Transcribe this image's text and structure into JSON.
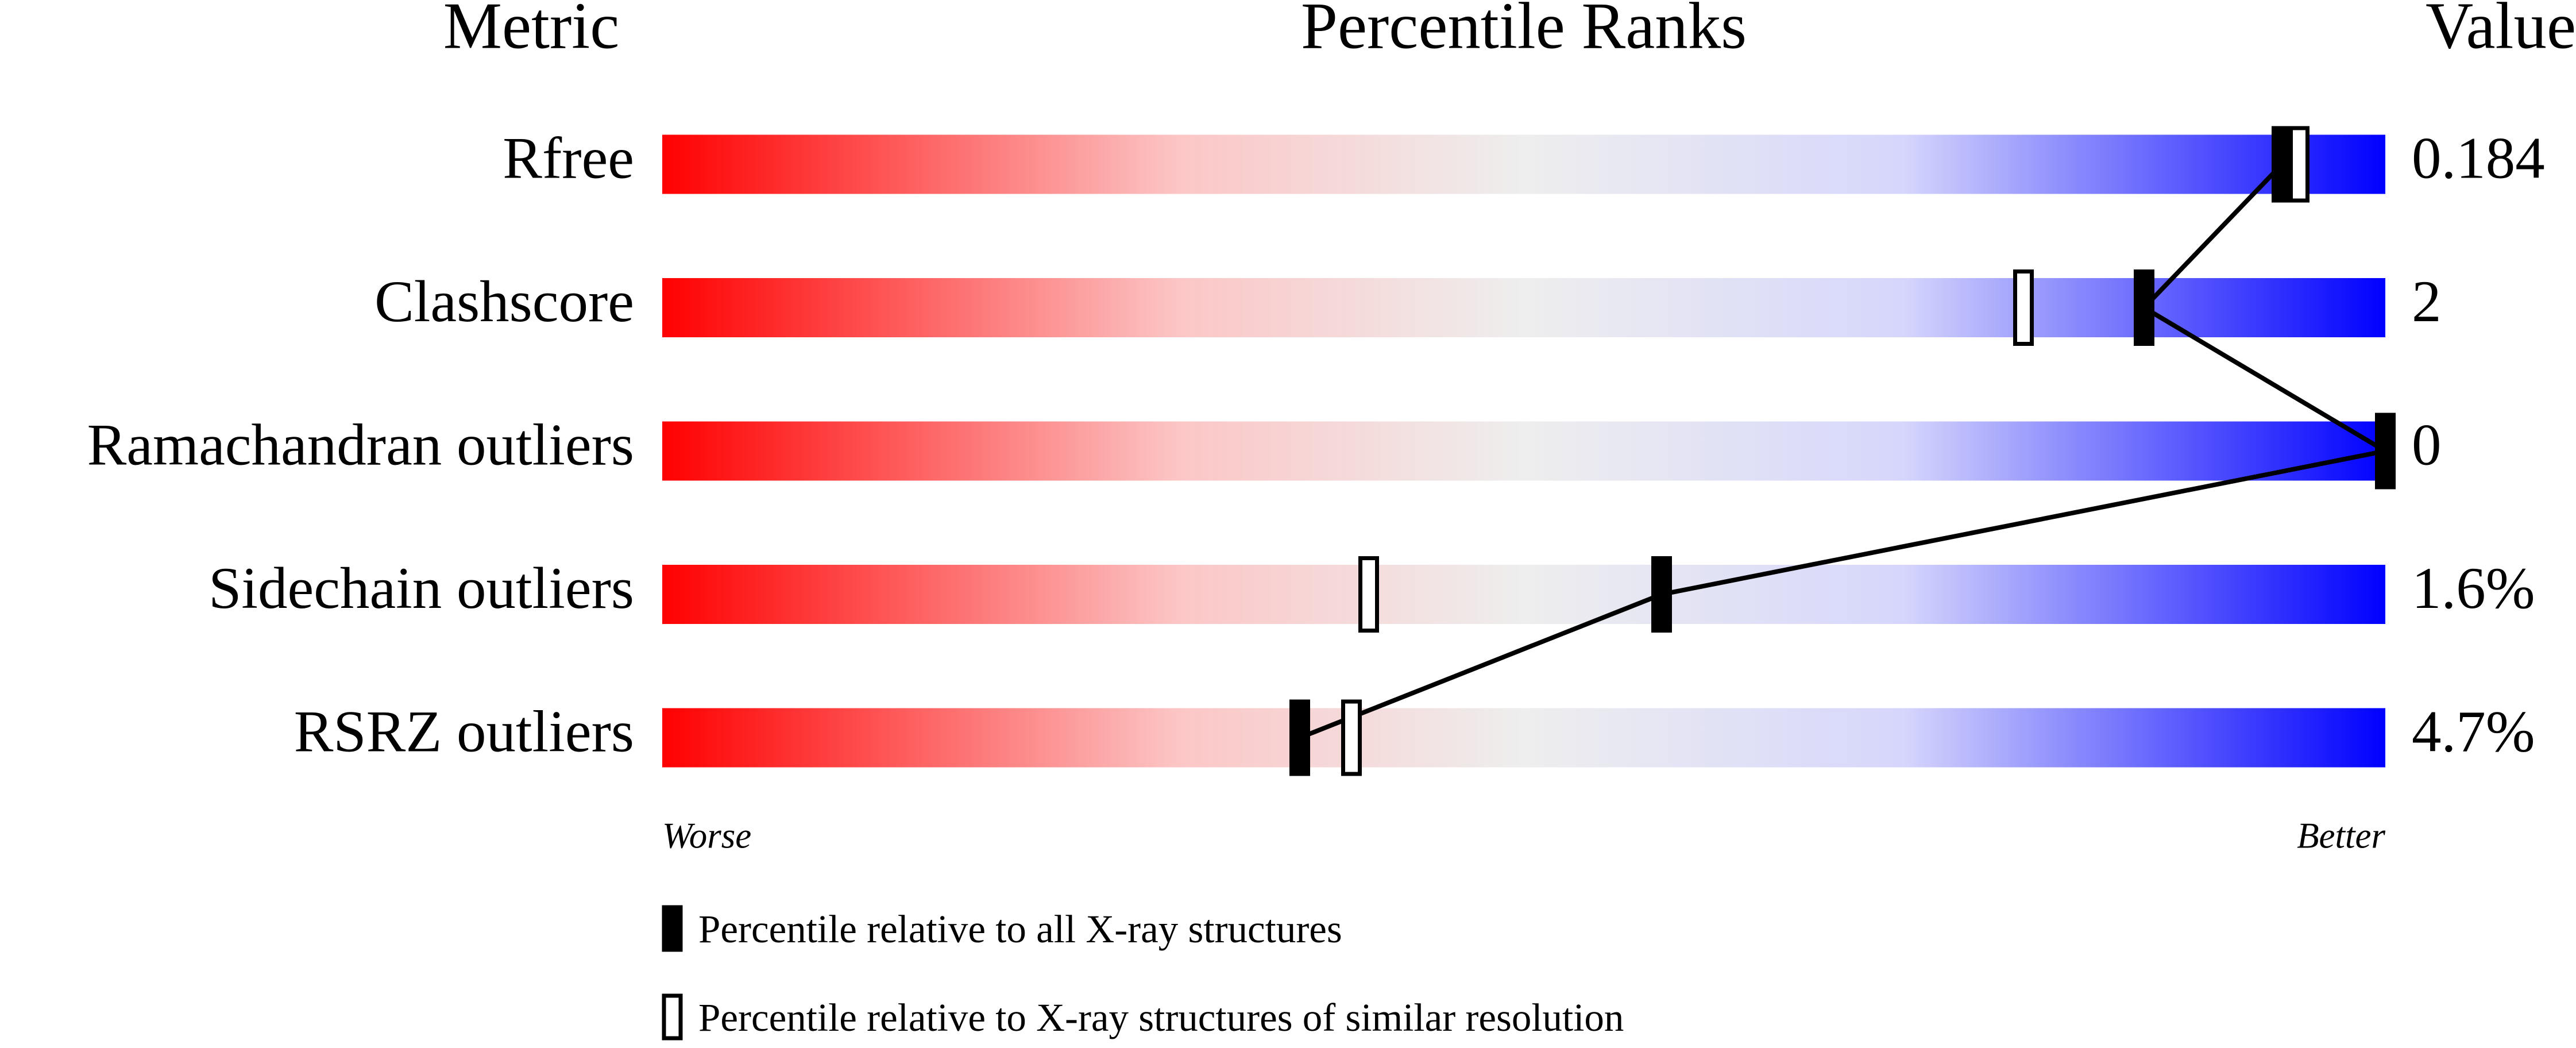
{
  "chart_data": {
    "type": "percentile-slider",
    "headers": [
      "Metric",
      "Percentile Ranks",
      "Value"
    ],
    "categories": [
      "Rfree",
      "Clashscore",
      "Ramachandran outliers",
      "Sidechain outliers",
      "RSRZ outliers"
    ],
    "metric_values": [
      0.184,
      2,
      0,
      {
        "value": 1.6,
        "label": "1.6%"
      },
      {
        "value": 4.7,
        "label": "4.7%"
      }
    ],
    "xlim": [
      0,
      100
    ],
    "axis_labels": [
      "Worse",
      "Better"
    ],
    "series": [
      {
        "name": "Percentile relative to all X-ray structures",
        "color": "#000000",
        "values": [
          94,
          86,
          100,
          58,
          37
        ]
      },
      {
        "name": "Percentile relative to X-ray structures of similar resolution",
        "color": "#ffffff",
        "values": [
          95,
          79,
          100,
          41,
          40
        ]
      }
    ]
  }
}
